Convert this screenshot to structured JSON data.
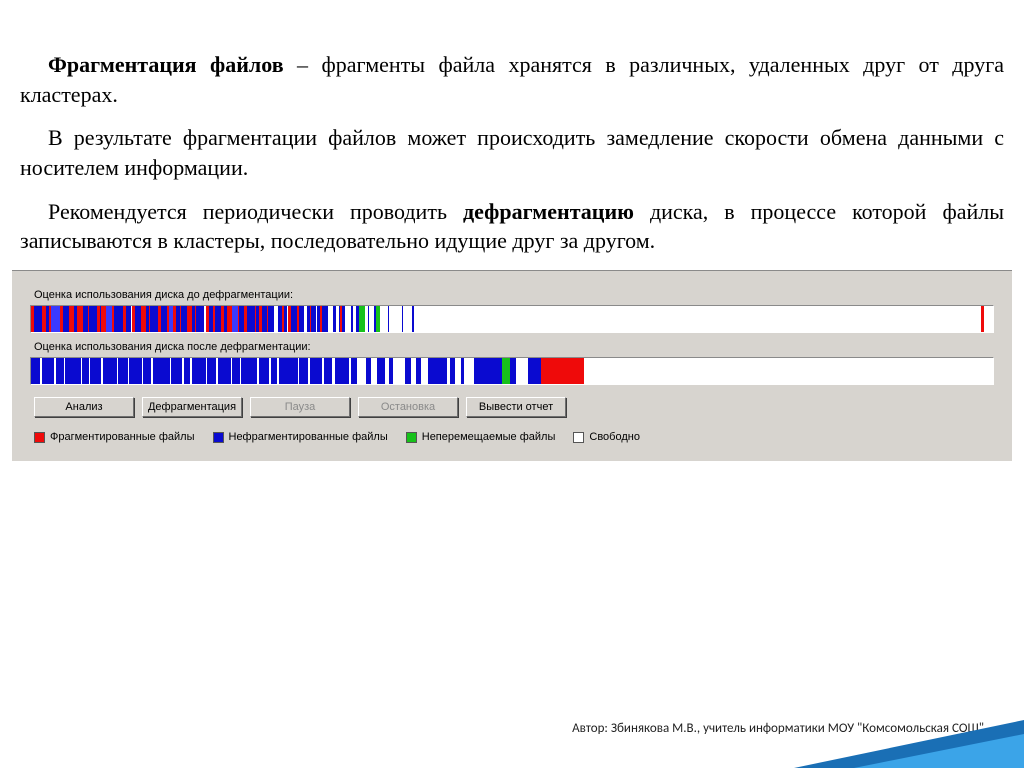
{
  "text": {
    "p1_bold": "Фрагментация файлов",
    "p1_rest": " – фрагменты файла хранятся в различных, удаленных друг от друга кластерах.",
    "p2": "В результате фрагментации файлов может происходить замедление скорости обмена данными с носителем информации.",
    "p3_a": "Рекомендуется периодически проводить ",
    "p3_bold": "дефрагментацию",
    "p3_b": " диска, в процессе которой файлы записываются в кластеры, последовательно идущие друг за другом."
  },
  "panel": {
    "label_before": "Оценка использования диска до дефрагментации:",
    "label_after": "Оценка использования диска после дефрагментации:",
    "colors": {
      "frag": "#ef0a0a",
      "nonfrag": "#0a0ad0",
      "immov": "#17c11a",
      "free": "#ffffff"
    },
    "bar_before": [
      [
        "#ef0a0a",
        2
      ],
      [
        "#0a0ad0",
        5
      ],
      [
        "#ef0a0a",
        3
      ],
      [
        "#0a0ad0",
        2
      ],
      [
        "#ef0a0a",
        1
      ],
      [
        "#3a3aff",
        6
      ],
      [
        "#ef0a0a",
        2
      ],
      [
        "#0a0ad0",
        4
      ],
      [
        "#ef0a0a",
        3
      ],
      [
        "#0a0ad0",
        2
      ],
      [
        "#ef0a0a",
        4
      ],
      [
        "#0a0ad0",
        3
      ],
      [
        "#ef0a0a",
        1
      ],
      [
        "#0a0ad0",
        5
      ],
      [
        "#ef0a0a",
        2
      ],
      [
        "#0a0ad0",
        1
      ],
      [
        "#ef0a0a",
        3
      ],
      [
        "#3a3aff",
        4
      ],
      [
        "#ef0a0a",
        1
      ],
      [
        "#0a0ad0",
        6
      ],
      [
        "#ef0a0a",
        2
      ],
      [
        "#0a0ad0",
        3
      ],
      [
        "#ffffff",
        1
      ],
      [
        "#ef0a0a",
        2
      ],
      [
        "#0a0ad0",
        4
      ],
      [
        "#ef0a0a",
        3
      ],
      [
        "#0a0ad0",
        2
      ],
      [
        "#ef0a0a",
        1
      ],
      [
        "#0a0ad0",
        5
      ],
      [
        "#ef0a0a",
        2
      ],
      [
        "#0a0ad0",
        4
      ],
      [
        "#ef0a0a",
        1
      ],
      [
        "#3a3aff",
        3
      ],
      [
        "#ef0a0a",
        2
      ],
      [
        "#0a0ad0",
        2
      ],
      [
        "#ef0a0a",
        1
      ],
      [
        "#0a0ad0",
        4
      ],
      [
        "#ef0a0a",
        3
      ],
      [
        "#0a0ad0",
        2
      ],
      [
        "#ef0a0a",
        1
      ],
      [
        "#0a0ad0",
        5
      ],
      [
        "#ffffff",
        1
      ],
      [
        "#ef0a0a",
        2
      ],
      [
        "#0a0ad0",
        3
      ],
      [
        "#ef0a0a",
        1
      ],
      [
        "#0a0ad0",
        4
      ],
      [
        "#ef0a0a",
        2
      ],
      [
        "#0a0ad0",
        2
      ],
      [
        "#ef0a0a",
        3
      ],
      [
        "#3a3aff",
        4
      ],
      [
        "#ef0a0a",
        1
      ],
      [
        "#0a0ad0",
        3
      ],
      [
        "#ef0a0a",
        2
      ],
      [
        "#0a0ad0",
        5
      ],
      [
        "#ef0a0a",
        1
      ],
      [
        "#0a0ad0",
        2
      ],
      [
        "#ef0a0a",
        2
      ],
      [
        "#0a0ad0",
        3
      ],
      [
        "#ef0a0a",
        1
      ],
      [
        "#0a0ad0",
        4
      ],
      [
        "#ffffff",
        2
      ],
      [
        "#0a0ad0",
        3
      ],
      [
        "#ef0a0a",
        1
      ],
      [
        "#0a0ad0",
        2
      ],
      [
        "#ffffff",
        1
      ],
      [
        "#ef0a0a",
        2
      ],
      [
        "#0a0ad0",
        4
      ],
      [
        "#ef0a0a",
        1
      ],
      [
        "#0a0ad0",
        3
      ],
      [
        "#ffffff",
        2
      ],
      [
        "#0a0ad0",
        2
      ],
      [
        "#ef0a0a",
        1
      ],
      [
        "#0a0ad0",
        3
      ],
      [
        "#ffffff",
        1
      ],
      [
        "#0a0ad0",
        2
      ],
      [
        "#ef0a0a",
        1
      ],
      [
        "#0a0ad0",
        4
      ],
      [
        "#ffffff",
        3
      ],
      [
        "#0a0ad0",
        2
      ],
      [
        "#ffffff",
        2
      ],
      [
        "#0a0ad0",
        1
      ],
      [
        "#ef0a0a",
        1
      ],
      [
        "#0a0ad0",
        2
      ],
      [
        "#ffffff",
        4
      ],
      [
        "#0a0ad0",
        1
      ],
      [
        "#ffffff",
        2
      ],
      [
        "#0a0ad0",
        2
      ],
      [
        "#17c11a",
        4
      ],
      [
        "#ffffff",
        2
      ],
      [
        "#0a0ad0",
        1
      ],
      [
        "#ffffff",
        3
      ],
      [
        "#0a0ad0",
        1
      ],
      [
        "#17c11a",
        3
      ],
      [
        "#ffffff",
        5
      ],
      [
        "#0a0ad0",
        1
      ],
      [
        "#ffffff",
        8
      ],
      [
        "#0a0ad0",
        1
      ],
      [
        "#ffffff",
        6
      ],
      [
        "#0a0ad0",
        1
      ],
      [
        "#ffffff",
        370
      ],
      [
        "#ef0a0a",
        2
      ],
      [
        "#ffffff",
        4
      ]
    ],
    "bar_after": [
      [
        "#0a0ad0",
        6
      ],
      [
        "#ffffff",
        1
      ],
      [
        "#0a0ad0",
        8
      ],
      [
        "#ffffff",
        1
      ],
      [
        "#0a0ad0",
        5
      ],
      [
        "#ffffff",
        1
      ],
      [
        "#0a0ad0",
        10
      ],
      [
        "#ffffff",
        1
      ],
      [
        "#0a0ad0",
        4
      ],
      [
        "#ffffff",
        1
      ],
      [
        "#0a0ad0",
        7
      ],
      [
        "#ffffff",
        1
      ],
      [
        "#0a0ad0",
        9
      ],
      [
        "#ffffff",
        1
      ],
      [
        "#0a0ad0",
        6
      ],
      [
        "#ffffff",
        1
      ],
      [
        "#0a0ad0",
        8
      ],
      [
        "#ffffff",
        1
      ],
      [
        "#0a0ad0",
        5
      ],
      [
        "#ffffff",
        1
      ],
      [
        "#0a0ad0",
        11
      ],
      [
        "#ffffff",
        1
      ],
      [
        "#0a0ad0",
        7
      ],
      [
        "#ffffff",
        1
      ],
      [
        "#0a0ad0",
        4
      ],
      [
        "#ffffff",
        1
      ],
      [
        "#0a0ad0",
        9
      ],
      [
        "#ffffff",
        1
      ],
      [
        "#0a0ad0",
        6
      ],
      [
        "#ffffff",
        1
      ],
      [
        "#0a0ad0",
        8
      ],
      [
        "#ffffff",
        1
      ],
      [
        "#0a0ad0",
        5
      ],
      [
        "#ffffff",
        1
      ],
      [
        "#0a0ad0",
        10
      ],
      [
        "#ffffff",
        1
      ],
      [
        "#0a0ad0",
        7
      ],
      [
        "#ffffff",
        1
      ],
      [
        "#0a0ad0",
        4
      ],
      [
        "#ffffff",
        1
      ],
      [
        "#0a0ad0",
        12
      ],
      [
        "#ffffff",
        1
      ],
      [
        "#0a0ad0",
        6
      ],
      [
        "#ffffff",
        1
      ],
      [
        "#0a0ad0",
        8
      ],
      [
        "#ffffff",
        1
      ],
      [
        "#0a0ad0",
        5
      ],
      [
        "#ffffff",
        2
      ],
      [
        "#0a0ad0",
        9
      ],
      [
        "#ffffff",
        1
      ],
      [
        "#0a0ad0",
        4
      ],
      [
        "#ffffff",
        6
      ],
      [
        "#0a0ad0",
        3
      ],
      [
        "#ffffff",
        4
      ],
      [
        "#0a0ad0",
        5
      ],
      [
        "#ffffff",
        3
      ],
      [
        "#0a0ad0",
        2
      ],
      [
        "#ffffff",
        8
      ],
      [
        "#0a0ad0",
        4
      ],
      [
        "#ffffff",
        3
      ],
      [
        "#0a0ad0",
        3
      ],
      [
        "#ffffff",
        5
      ],
      [
        "#0a0ad0",
        12
      ],
      [
        "#ffffff",
        2
      ],
      [
        "#0a0ad0",
        3
      ],
      [
        "#ffffff",
        4
      ],
      [
        "#0a0ad0",
        2
      ],
      [
        "#ffffff",
        6
      ],
      [
        "#0a0ad0",
        18
      ],
      [
        "#17c11a",
        5
      ],
      [
        "#0a0ad0",
        4
      ],
      [
        "#ffffff",
        8
      ],
      [
        "#0a0ad0",
        8
      ],
      [
        "#ef0a0a",
        28
      ],
      [
        "#ffffff",
        260
      ]
    ],
    "buttons": [
      {
        "label": "Анализ",
        "disabled": false
      },
      {
        "label": "Дефрагментация",
        "disabled": false
      },
      {
        "label": "Пауза",
        "disabled": true
      },
      {
        "label": "Остановка",
        "disabled": true
      },
      {
        "label": "Вывести отчет",
        "disabled": false
      }
    ],
    "legend": [
      {
        "color": "#ef0a0a",
        "label": "Фрагментированные файлы"
      },
      {
        "color": "#0a0ad0",
        "label": "Нефрагментированные файлы"
      },
      {
        "color": "#17c11a",
        "label": "Неперемещаемые файлы"
      },
      {
        "color": "#ffffff",
        "label": "Свободно"
      }
    ]
  },
  "footer": "Автор: Збинякова М.В., учитель информатики МОУ \"Комсомольская СОШ\""
}
